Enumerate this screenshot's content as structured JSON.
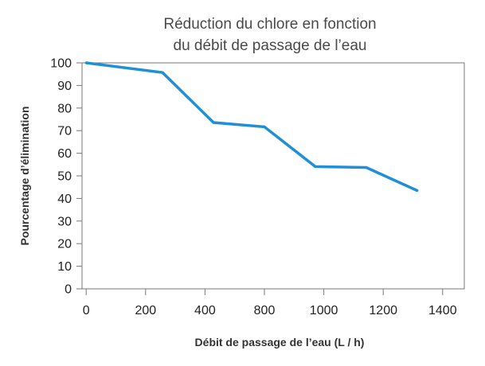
{
  "chart_data": {
    "type": "line",
    "title_lines": [
      "Réduction du chlore en fonction",
      "du débit de passage de l’eau"
    ],
    "xlabel": "Débit de passage de l’eau (L / h)",
    "ylabel": "Pourcentage d’élimination",
    "x_ticks": [
      0,
      200,
      400,
      800,
      1000,
      1200,
      1400
    ],
    "y_ticks": [
      0,
      10,
      20,
      30,
      40,
      50,
      60,
      70,
      80,
      90,
      100
    ],
    "xlim": [
      -10,
      1410
    ],
    "ylim": [
      0,
      100
    ],
    "grid": false,
    "line_color": "#1f8fd6",
    "series": [
      {
        "x": [
          0,
          300,
          500,
          700,
          900,
          1100,
          1300
        ],
        "values": [
          100,
          95.7,
          73.6,
          71.7,
          54.1,
          53.7,
          43.5
        ]
      }
    ]
  }
}
